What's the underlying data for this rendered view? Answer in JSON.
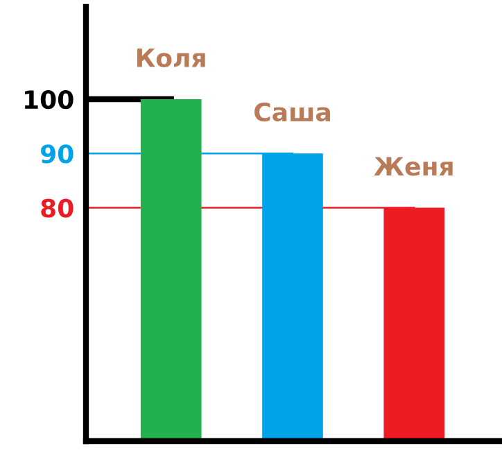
{
  "chart_data": {
    "type": "bar",
    "categories": [
      "Коля",
      "Саша",
      "Женя"
    ],
    "values": [
      100,
      90,
      80
    ],
    "colors": [
      "#22b14c",
      "#00a2e8",
      "#ed1c24"
    ],
    "ylim": [
      37,
      117
    ],
    "yticks": [
      80,
      90,
      100
    ],
    "ref_lines": [
      {
        "axis": "y",
        "value": 100,
        "color": "#000000"
      },
      {
        "axis": "y",
        "value": 90,
        "color": "#00a2e8"
      },
      {
        "axis": "y",
        "value": 80,
        "color": "#ed1c24"
      }
    ],
    "grid": false
  }
}
